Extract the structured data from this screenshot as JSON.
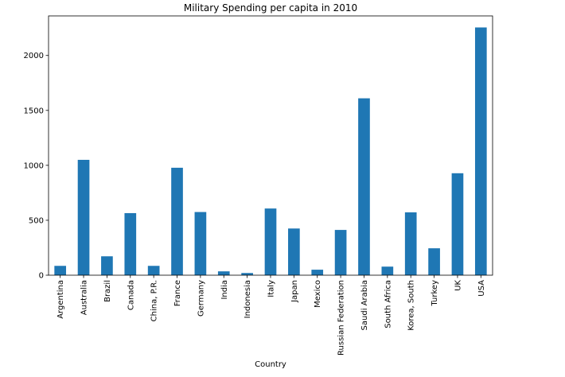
{
  "chart_data": {
    "type": "bar",
    "title": "Military Spending per capita in 2010",
    "xlabel": "Country",
    "ylabel": "",
    "categories": [
      "Argentina",
      "Australia",
      "Brazil",
      "Canada",
      "China, P.R.",
      "France",
      "Germany",
      "India",
      "Indonesia",
      "Italy",
      "Japan",
      "Mexico",
      "Russian Federation",
      "Saudi Arabia",
      "South Africa",
      "Korea, South",
      "Turkey",
      "UK",
      "USA"
    ],
    "values": [
      85,
      1050,
      172,
      565,
      85,
      978,
      575,
      35,
      20,
      607,
      425,
      50,
      412,
      1610,
      78,
      572,
      245,
      928,
      2255
    ],
    "ylim": [
      0,
      2360
    ],
    "yticks": [
      0,
      500,
      1000,
      1500,
      2000
    ],
    "bar_color": "#1f77b4",
    "grid": false,
    "legend": "none"
  }
}
